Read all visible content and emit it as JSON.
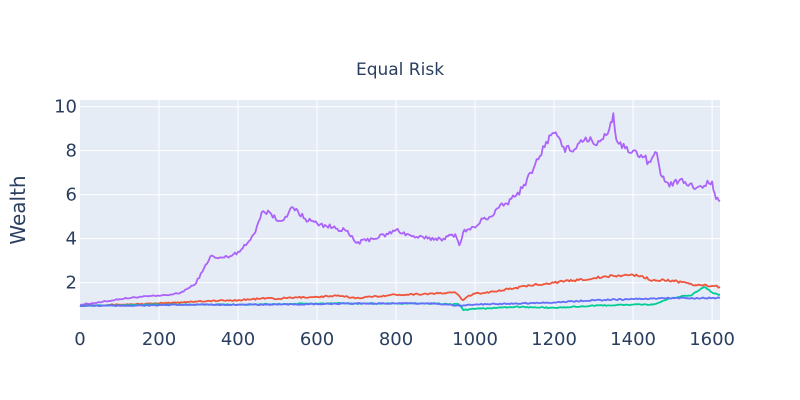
{
  "chart_data": {
    "type": "line",
    "title": "Equal Risk",
    "xlabel": "",
    "ylabel": "Wealth",
    "xlim": [
      0,
      1620
    ],
    "ylim": [
      0.3,
      10.3
    ],
    "xticks": [
      0,
      200,
      400,
      600,
      800,
      1000,
      1200,
      1400,
      1600
    ],
    "yticks": [
      2,
      4,
      6,
      8,
      10
    ],
    "grid": true,
    "legend": "none",
    "series": [
      {
        "color": "#ab63fa",
        "x": [
          0,
          50,
          100,
          150,
          200,
          250,
          290,
          310,
          330,
          350,
          380,
          400,
          420,
          440,
          460,
          480,
          500,
          520,
          540,
          570,
          600,
          640,
          670,
          700,
          740,
          780,
          800,
          840,
          880,
          920,
          950,
          960,
          970,
          980,
          1000,
          1020,
          1040,
          1060,
          1080,
          1100,
          1120,
          1140,
          1160,
          1180,
          1200,
          1220,
          1240,
          1260,
          1280,
          1300,
          1320,
          1340,
          1350,
          1355,
          1360,
          1380,
          1400,
          1420,
          1440,
          1460,
          1470,
          1480,
          1500,
          1520,
          1540,
          1560,
          1580,
          1600,
          1610,
          1620
        ],
        "y": [
          1.0,
          1.1,
          1.25,
          1.35,
          1.4,
          1.5,
          1.9,
          2.5,
          3.2,
          3.1,
          3.2,
          3.4,
          3.7,
          4.2,
          5.2,
          5.2,
          4.8,
          5.0,
          5.4,
          4.9,
          4.7,
          4.5,
          4.4,
          3.8,
          4.0,
          4.2,
          4.4,
          4.1,
          4.0,
          4.0,
          4.2,
          3.7,
          4.3,
          4.4,
          4.5,
          4.9,
          5.0,
          5.4,
          5.6,
          5.9,
          6.3,
          7.0,
          7.6,
          8.4,
          8.8,
          8.2,
          8.0,
          8.3,
          8.6,
          8.3,
          8.5,
          9.0,
          9.7,
          8.8,
          8.4,
          8.1,
          8.0,
          7.8,
          7.5,
          7.9,
          6.9,
          6.6,
          6.4,
          6.7,
          6.4,
          6.3,
          6.4,
          6.6,
          5.8,
          5.7
        ]
      },
      {
        "color": "#ef553b",
        "x": [
          0,
          100,
          200,
          300,
          400,
          480,
          500,
          520,
          600,
          650,
          700,
          800,
          900,
          950,
          970,
          980,
          1000,
          1050,
          1100,
          1150,
          1200,
          1250,
          1300,
          1350,
          1400,
          1420,
          1450,
          1500,
          1550,
          1600,
          1620
        ],
        "y": [
          0.95,
          1.0,
          1.05,
          1.15,
          1.2,
          1.3,
          1.25,
          1.3,
          1.35,
          1.4,
          1.3,
          1.45,
          1.5,
          1.55,
          1.2,
          1.35,
          1.5,
          1.6,
          1.75,
          1.9,
          2.0,
          2.1,
          2.2,
          2.3,
          2.35,
          2.3,
          2.1,
          2.1,
          1.9,
          1.85,
          1.8
        ]
      },
      {
        "color": "#00cc96",
        "x": [
          0,
          100,
          200,
          300,
          400,
          500,
          600,
          700,
          800,
          900,
          960,
          970,
          1000,
          1100,
          1200,
          1300,
          1400,
          1450,
          1500,
          1550,
          1580,
          1600,
          1620
        ],
        "y": [
          0.95,
          0.97,
          1.0,
          1.0,
          1.0,
          1.02,
          1.05,
          1.05,
          1.05,
          1.05,
          1.0,
          0.75,
          0.8,
          0.9,
          0.85,
          0.95,
          1.0,
          1.0,
          1.3,
          1.45,
          1.8,
          1.55,
          1.45
        ]
      },
      {
        "color": "#636efa",
        "x": [
          0,
          100,
          200,
          300,
          400,
          500,
          600,
          700,
          800,
          900,
          960,
          1000,
          1100,
          1200,
          1300,
          1400,
          1500,
          1550,
          1600,
          1620
        ],
        "y": [
          0.95,
          0.95,
          0.97,
          1.0,
          1.0,
          1.0,
          1.02,
          1.05,
          1.05,
          1.05,
          0.95,
          1.0,
          1.05,
          1.1,
          1.2,
          1.25,
          1.3,
          1.3,
          1.3,
          1.3
        ]
      }
    ]
  }
}
